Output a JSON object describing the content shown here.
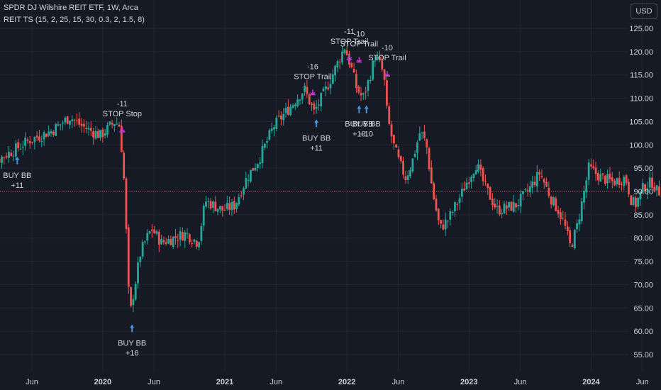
{
  "header": {
    "title": "SPDR DJ Wilshire REIT ETF, 1W, Arca",
    "indicator": "REIT TS (15, 2, 25, 15, 30, 0.3, 2, 1.5, 8)",
    "currency": "USD"
  },
  "colors": {
    "background": "#161a25",
    "grid": "#232734",
    "up": "#26a69a",
    "down": "#ef5350",
    "reference_line": "#ef5350",
    "buy_arrow": "#4a90d9",
    "stop_marker": "#c238c9",
    "text": "#d1d4dc"
  },
  "chart_data": {
    "type": "candlestick",
    "title": "SPDR DJ Wilshire REIT ETF, 1W, Arca",
    "x_range": [
      "2019-01",
      "2024-10"
    ],
    "ylim": [
      52,
      127
    ],
    "y_ticks": [
      "125.00",
      "120.00",
      "115.00",
      "110.00",
      "105.00",
      "100.00",
      "95.00",
      "90.00",
      "85.00",
      "80.00",
      "75.00",
      "70.00",
      "65.00",
      "60.00",
      "55.00"
    ],
    "x_ticks": [
      {
        "label": "Jun",
        "t": 2019.42,
        "bold": false
      },
      {
        "label": "2020",
        "t": 2020.0,
        "bold": true
      },
      {
        "label": "Jun",
        "t": 2020.42,
        "bold": false
      },
      {
        "label": "2021",
        "t": 2021.0,
        "bold": true
      },
      {
        "label": "Jun",
        "t": 2021.42,
        "bold": false
      },
      {
        "label": "2022",
        "t": 2022.0,
        "bold": true
      },
      {
        "label": "Jun",
        "t": 2022.42,
        "bold": false
      },
      {
        "label": "2023",
        "t": 2023.0,
        "bold": true
      },
      {
        "label": "Jun",
        "t": 2023.42,
        "bold": false
      },
      {
        "label": "2024",
        "t": 2024.0,
        "bold": true
      },
      {
        "label": "Jun",
        "t": 2024.42,
        "bold": false
      }
    ],
    "grid": true,
    "reference_line": 90,
    "series": [
      {
        "t": 2019.1,
        "v": 96
      },
      {
        "t": 2019.3,
        "v": 99
      },
      {
        "t": 2019.42,
        "v": 101
      },
      {
        "t": 2019.6,
        "v": 103
      },
      {
        "t": 2019.75,
        "v": 106
      },
      {
        "t": 2019.85,
        "v": 104
      },
      {
        "t": 2020.0,
        "v": 102
      },
      {
        "t": 2020.12,
        "v": 105
      },
      {
        "t": 2020.16,
        "v": 104
      },
      {
        "t": 2020.2,
        "v": 90
      },
      {
        "t": 2020.22,
        "v": 75
      },
      {
        "t": 2020.24,
        "v": 63
      },
      {
        "t": 2020.27,
        "v": 68
      },
      {
        "t": 2020.33,
        "v": 77
      },
      {
        "t": 2020.38,
        "v": 80
      },
      {
        "t": 2020.42,
        "v": 82
      },
      {
        "t": 2020.5,
        "v": 79
      },
      {
        "t": 2020.6,
        "v": 80
      },
      {
        "t": 2020.7,
        "v": 81
      },
      {
        "t": 2020.8,
        "v": 79
      },
      {
        "t": 2020.86,
        "v": 88
      },
      {
        "t": 2021.0,
        "v": 86
      },
      {
        "t": 2021.1,
        "v": 87
      },
      {
        "t": 2021.2,
        "v": 93
      },
      {
        "t": 2021.3,
        "v": 97
      },
      {
        "t": 2021.42,
        "v": 104
      },
      {
        "t": 2021.55,
        "v": 108
      },
      {
        "t": 2021.67,
        "v": 112
      },
      {
        "t": 2021.75,
        "v": 107
      },
      {
        "t": 2021.85,
        "v": 112
      },
      {
        "t": 2021.95,
        "v": 118
      },
      {
        "t": 2022.0,
        "v": 121
      },
      {
        "t": 2022.05,
        "v": 117
      },
      {
        "t": 2022.1,
        "v": 112
      },
      {
        "t": 2022.15,
        "v": 110
      },
      {
        "t": 2022.2,
        "v": 114
      },
      {
        "t": 2022.25,
        "v": 119
      },
      {
        "t": 2022.3,
        "v": 117
      },
      {
        "t": 2022.33,
        "v": 113
      },
      {
        "t": 2022.35,
        "v": 106
      },
      {
        "t": 2022.4,
        "v": 100
      },
      {
        "t": 2022.45,
        "v": 96
      },
      {
        "t": 2022.5,
        "v": 93
      },
      {
        "t": 2022.55,
        "v": 96
      },
      {
        "t": 2022.62,
        "v": 103
      },
      {
        "t": 2022.67,
        "v": 100
      },
      {
        "t": 2022.72,
        "v": 90
      },
      {
        "t": 2022.78,
        "v": 82
      },
      {
        "t": 2022.85,
        "v": 84
      },
      {
        "t": 2022.95,
        "v": 89
      },
      {
        "t": 2023.0,
        "v": 92
      },
      {
        "t": 2023.08,
        "v": 96
      },
      {
        "t": 2023.15,
        "v": 91
      },
      {
        "t": 2023.25,
        "v": 86
      },
      {
        "t": 2023.4,
        "v": 87
      },
      {
        "t": 2023.5,
        "v": 90
      },
      {
        "t": 2023.6,
        "v": 94
      },
      {
        "t": 2023.7,
        "v": 88
      },
      {
        "t": 2023.75,
        "v": 86
      },
      {
        "t": 2023.8,
        "v": 83
      },
      {
        "t": 2023.85,
        "v": 78
      },
      {
        "t": 2023.9,
        "v": 82
      },
      {
        "t": 2023.97,
        "v": 91
      },
      {
        "t": 2024.0,
        "v": 95
      },
      {
        "t": 2024.1,
        "v": 93
      },
      {
        "t": 2024.2,
        "v": 92
      },
      {
        "t": 2024.3,
        "v": 93
      },
      {
        "t": 2024.35,
        "v": 88
      },
      {
        "t": 2024.38,
        "v": 87
      },
      {
        "t": 2024.45,
        "v": 91
      },
      {
        "t": 2024.52,
        "v": 92
      },
      {
        "t": 2024.56,
        "v": 90
      }
    ],
    "signals": [
      {
        "kind": "buy",
        "t": 2019.3,
        "price": 99,
        "lines": [
          "BUY BB",
          "+11"
        ]
      },
      {
        "kind": "stop",
        "t": 2020.16,
        "price": 104,
        "lines": [
          "-11",
          "STOP Stop"
        ]
      },
      {
        "kind": "buy",
        "t": 2020.24,
        "price": 63,
        "lines": [
          "BUY BB",
          "+16"
        ]
      },
      {
        "kind": "buy",
        "t": 2021.75,
        "price": 107,
        "lines": [
          "BUY BB",
          "+11"
        ]
      },
      {
        "kind": "stop",
        "t": 2021.72,
        "price": 112,
        "lines": [
          "-16",
          "STOP Trail"
        ]
      },
      {
        "kind": "stop",
        "t": 2022.02,
        "price": 119.5,
        "lines": [
          "-11",
          "STOP Trail"
        ]
      },
      {
        "kind": "stop",
        "t": 2022.1,
        "price": 119,
        "lines": [
          "-10",
          "STOP Trail"
        ]
      },
      {
        "kind": "buy",
        "t": 2022.1,
        "price": 110,
        "lines": [
          "BUY BB",
          "+10"
        ]
      },
      {
        "kind": "buy",
        "t": 2022.16,
        "price": 110,
        "lines": [
          "BUY BB",
          "+10"
        ]
      },
      {
        "kind": "stop",
        "t": 2022.33,
        "price": 116,
        "lines": [
          "-10",
          "STOP Trail"
        ]
      }
    ]
  }
}
